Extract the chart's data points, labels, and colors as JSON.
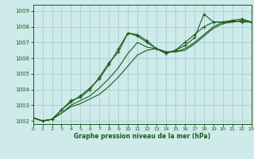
{
  "title": "Graphe pression niveau de la mer (hPa)",
  "background_color": "#ceeaea",
  "grid_color": "#aacece",
  "line_color": "#1a5c1a",
  "xlim": [
    0,
    23
  ],
  "ylim": [
    1001.8,
    1009.4
  ],
  "yticks": [
    1002,
    1003,
    1004,
    1005,
    1006,
    1007,
    1008,
    1009
  ],
  "xticks": [
    0,
    1,
    2,
    3,
    4,
    5,
    6,
    7,
    8,
    9,
    10,
    11,
    12,
    13,
    14,
    15,
    16,
    17,
    18,
    19,
    20,
    21,
    22,
    23
  ],
  "series": [
    {
      "x": [
        0,
        1,
        2,
        3,
        4,
        5,
        6,
        7,
        8,
        9,
        10,
        11,
        12,
        13,
        14,
        15,
        16,
        17,
        18,
        19,
        20,
        21,
        22,
        23
      ],
      "y": [
        1002.2,
        1002.0,
        1002.1,
        1002.7,
        1003.2,
        1003.6,
        1004.1,
        1004.7,
        1005.6,
        1006.6,
        1007.6,
        1007.4,
        1007.0,
        1006.6,
        1006.3,
        1006.5,
        1006.8,
        1007.3,
        1008.8,
        1008.3,
        1008.3,
        1008.4,
        1008.3,
        1008.3
      ],
      "marker": true
    },
    {
      "x": [
        0,
        1,
        2,
        3,
        4,
        5,
        6,
        7,
        8,
        9,
        10,
        11,
        12,
        13,
        14,
        15,
        16,
        17,
        18,
        19,
        20,
        21,
        22,
        23
      ],
      "y": [
        1002.2,
        1002.0,
        1002.1,
        1002.7,
        1003.3,
        1003.5,
        1004.0,
        1004.8,
        1005.7,
        1006.4,
        1007.6,
        1007.5,
        1007.1,
        1006.6,
        1006.3,
        1006.5,
        1007.0,
        1007.5,
        1008.0,
        1008.3,
        1008.3,
        1008.4,
        1008.5,
        1008.3
      ],
      "marker": true
    },
    {
      "x": [
        0,
        1,
        2,
        3,
        4,
        5,
        6,
        7,
        8,
        9,
        10,
        11,
        12,
        13,
        14,
        15,
        16,
        17,
        18,
        19,
        20,
        21,
        22,
        23
      ],
      "y": [
        1002.2,
        1002.0,
        1002.1,
        1002.5,
        1003.0,
        1003.3,
        1003.6,
        1004.1,
        1004.7,
        1005.4,
        1006.3,
        1007.0,
        1006.7,
        1006.6,
        1006.4,
        1006.4,
        1006.6,
        1007.0,
        1007.5,
        1008.0,
        1008.3,
        1008.3,
        1008.4,
        1008.3
      ],
      "marker": false
    },
    {
      "x": [
        0,
        1,
        2,
        3,
        4,
        5,
        6,
        7,
        8,
        9,
        10,
        11,
        12,
        13,
        14,
        15,
        16,
        17,
        18,
        19,
        20,
        21,
        22,
        23
      ],
      "y": [
        1002.2,
        1002.0,
        1002.1,
        1002.5,
        1002.9,
        1003.1,
        1003.4,
        1003.7,
        1004.2,
        1004.8,
        1005.5,
        1006.2,
        1006.5,
        1006.6,
        1006.4,
        1006.4,
        1006.5,
        1006.9,
        1007.4,
        1007.9,
        1008.2,
        1008.3,
        1008.4,
        1008.3
      ],
      "marker": false
    }
  ]
}
